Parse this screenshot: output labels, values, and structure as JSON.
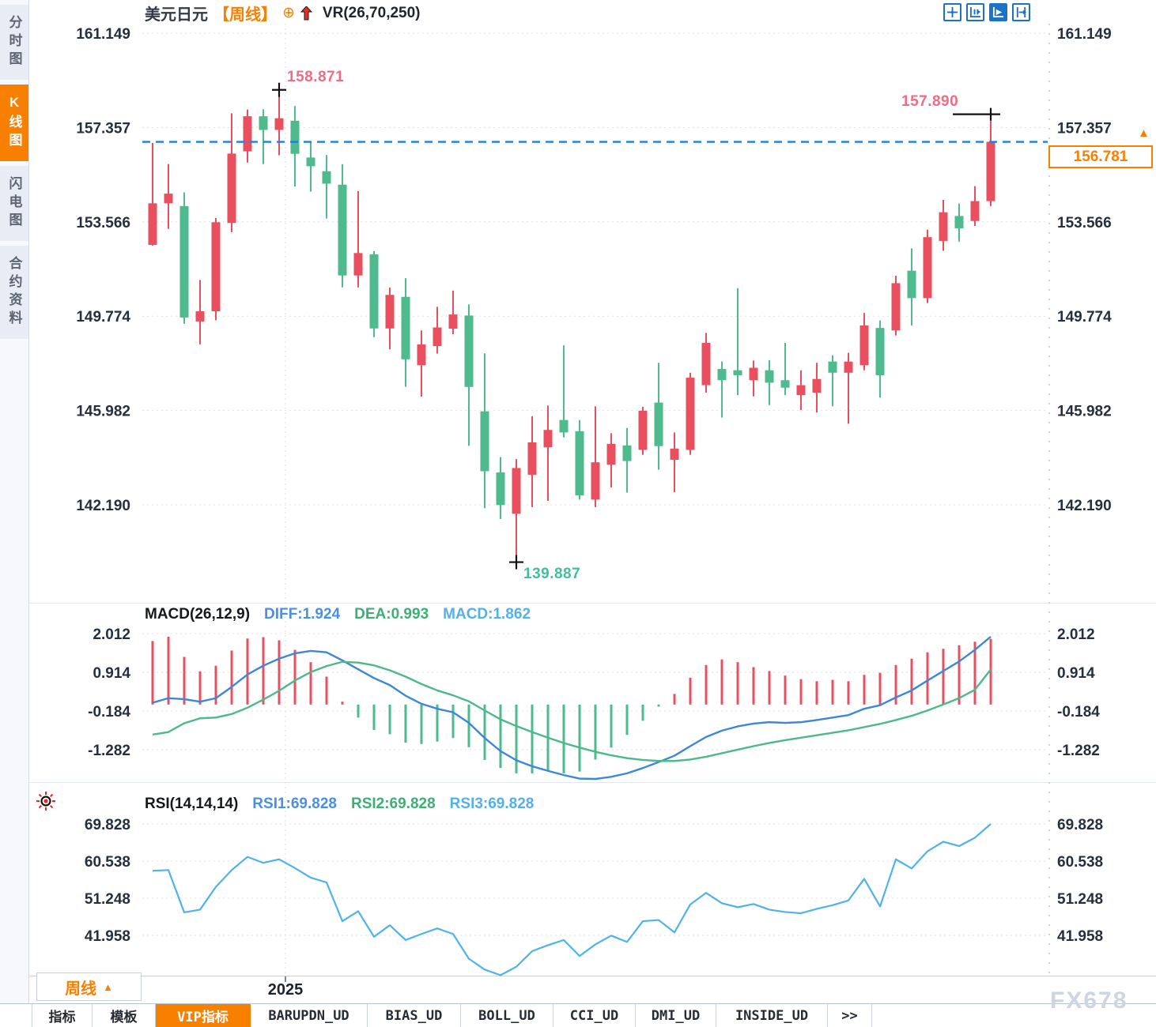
{
  "app": {
    "watermark": "FX678"
  },
  "colors": {
    "up": "#e9505f",
    "down": "#4eba8d",
    "accent": "#f88000",
    "current_price_line": "#1f7ce8",
    "annotation_high": "#ed6d85",
    "annotation_low": "#3fc0a0",
    "diff_line": "#3d87da",
    "dea_line": "#4db98a",
    "rsi_line": "#4fb3e8",
    "axis_text": "#252f3d",
    "grid": "#e2e2e2",
    "marker": "#111111"
  },
  "sidebar": {
    "items": [
      {
        "label": "分时图",
        "active": false
      },
      {
        "label": "K线图",
        "active": true
      },
      {
        "label": "闪电图",
        "active": false
      },
      {
        "label": "合约资料",
        "active": false
      }
    ]
  },
  "header": {
    "symbol": "美元日元",
    "period": "【周线】",
    "oplus": "⊕",
    "overlay_indicator": "VR(26,70,250)"
  },
  "toolbar": {
    "icons": [
      "move-crosshair-icon",
      "axis-zoom-icon",
      "auto-track-icon",
      "go-to-latest-icon"
    ]
  },
  "price_tag": {
    "value": "156.781",
    "arrow": "▲"
  },
  "period_box": {
    "label": "周线",
    "arrow": "▲"
  },
  "x_axis": {
    "year": "2025"
  },
  "bottom_tabs": [
    {
      "label": "指标",
      "active": false
    },
    {
      "label": "模板",
      "active": false
    },
    {
      "label": "VIP指标",
      "active": true
    },
    {
      "label": "BARUPDN_UD",
      "active": false
    },
    {
      "label": "BIAS_UD",
      "active": false
    },
    {
      "label": "BOLL_UD",
      "active": false
    },
    {
      "label": "CCI_UD",
      "active": false
    },
    {
      "label": "DMI_UD",
      "active": false
    },
    {
      "label": "INSIDE_UD",
      "active": false
    },
    {
      "label": ">>",
      "active": false
    }
  ],
  "chart_data": [
    {
      "type": "candlestick",
      "title": "美元日元 周线 (USD/JPY weekly)",
      "y_ticks": [
        161.149,
        157.357,
        153.566,
        149.774,
        145.982,
        142.19
      ],
      "ylim": [
        138.4,
        161.5
      ],
      "current_price": 156.781,
      "year_tick": {
        "label": "2025",
        "candle": 9.4
      },
      "annotations": [
        {
          "text": "158.871",
          "value": 158.871,
          "candle": 9,
          "kind": "swing-high"
        },
        {
          "text": "157.890",
          "value": 157.89,
          "candle": 54,
          "kind": "swing-high"
        },
        {
          "text": "139.887",
          "value": 139.887,
          "candle": 24,
          "kind": "swing-low"
        }
      ],
      "ohlc": [
        [
          152.64,
          156.74,
          152.61,
          154.31
        ],
        [
          154.31,
          155.89,
          153.28,
          154.7
        ],
        [
          154.2,
          154.75,
          149.47,
          149.72
        ],
        [
          149.56,
          151.23,
          148.64,
          149.97
        ],
        [
          149.97,
          153.72,
          149.61,
          153.55
        ],
        [
          153.52,
          157.93,
          153.15,
          156.31
        ],
        [
          156.4,
          158.08,
          155.95,
          157.81
        ],
        [
          157.81,
          158.09,
          155.89,
          157.26
        ],
        [
          157.26,
          158.871,
          156.24,
          157.73
        ],
        [
          157.63,
          158.22,
          154.98,
          156.3
        ],
        [
          156.15,
          156.75,
          154.78,
          155.8
        ],
        [
          155.6,
          156.25,
          153.7,
          155.1
        ],
        [
          155.06,
          155.88,
          150.93,
          151.41
        ],
        [
          151.41,
          154.8,
          150.93,
          152.31
        ],
        [
          152.26,
          152.39,
          148.93,
          149.28
        ],
        [
          149.28,
          150.92,
          148.44,
          150.63
        ],
        [
          150.55,
          151.3,
          146.94,
          148.04
        ],
        [
          147.8,
          149.2,
          146.54,
          148.64
        ],
        [
          148.57,
          150.15,
          148.27,
          149.32
        ],
        [
          149.27,
          150.8,
          149.05,
          149.84
        ],
        [
          149.8,
          150.25,
          144.56,
          146.93
        ],
        [
          145.95,
          148.28,
          142.05,
          143.54
        ],
        [
          143.49,
          144.11,
          141.62,
          142.18
        ],
        [
          141.83,
          144.03,
          139.887,
          143.67
        ],
        [
          143.4,
          145.75,
          142.1,
          144.7
        ],
        [
          144.5,
          146.18,
          142.35,
          145.2
        ],
        [
          145.6,
          148.6,
          144.9,
          145.1
        ],
        [
          145.15,
          145.6,
          142.4,
          142.57
        ],
        [
          142.4,
          146.15,
          142.1,
          143.9
        ],
        [
          143.8,
          145.07,
          142.89,
          144.64
        ],
        [
          144.58,
          145.28,
          142.68,
          143.95
        ],
        [
          144.4,
          146.13,
          144.2,
          145.97
        ],
        [
          146.3,
          147.9,
          143.6,
          144.55
        ],
        [
          144.0,
          145.1,
          142.7,
          144.45
        ],
        [
          144.4,
          147.5,
          144.2,
          147.3
        ],
        [
          147.0,
          149.1,
          146.7,
          148.7
        ],
        [
          147.65,
          147.95,
          145.7,
          147.2
        ],
        [
          147.6,
          150.9,
          146.6,
          147.4
        ],
        [
          147.2,
          147.99,
          146.55,
          147.7
        ],
        [
          147.6,
          148.0,
          146.2,
          147.1
        ],
        [
          147.2,
          148.7,
          146.6,
          146.9
        ],
        [
          146.6,
          147.6,
          146.0,
          147.0
        ],
        [
          146.7,
          147.9,
          145.9,
          147.25
        ],
        [
          147.95,
          148.2,
          146.15,
          147.5
        ],
        [
          147.5,
          148.3,
          145.45,
          147.95
        ],
        [
          147.8,
          149.9,
          147.6,
          149.4
        ],
        [
          149.3,
          149.6,
          146.5,
          147.4
        ],
        [
          149.2,
          151.4,
          149.0,
          151.1
        ],
        [
          151.6,
          152.5,
          149.4,
          150.5
        ],
        [
          150.5,
          153.25,
          150.3,
          152.95
        ],
        [
          152.8,
          154.45,
          152.4,
          153.95
        ],
        [
          153.8,
          154.3,
          152.77,
          153.3
        ],
        [
          153.6,
          155.0,
          153.4,
          154.4
        ],
        [
          154.4,
          157.89,
          154.2,
          156.781
        ]
      ]
    },
    {
      "type": "macd",
      "legend": {
        "title": "MACD(26,12,9)",
        "diff": "DIFF:1.924",
        "dea": "DEA:0.993",
        "macd": "MACD:1.862"
      },
      "y_ticks": [
        2.012,
        0.914,
        -0.184,
        -1.282
      ],
      "diff": [
        0.05,
        0.18,
        0.15,
        0.08,
        0.18,
        0.5,
        0.85,
        1.1,
        1.3,
        1.45,
        1.52,
        1.48,
        1.25,
        1.0,
        0.75,
        0.55,
        0.25,
        0.02,
        -0.12,
        -0.22,
        -0.52,
        -0.95,
        -1.32,
        -1.58,
        -1.75,
        -1.88,
        -2.0,
        -2.1,
        -2.12,
        -2.05,
        -1.95,
        -1.8,
        -1.63,
        -1.45,
        -1.18,
        -0.92,
        -0.74,
        -0.62,
        -0.54,
        -0.5,
        -0.52,
        -0.5,
        -0.44,
        -0.37,
        -0.3,
        -0.12,
        -0.02,
        0.2,
        0.4,
        0.68,
        0.95,
        1.22,
        1.55,
        1.924
      ],
      "dea": [
        -0.85,
        -0.78,
        -0.53,
        -0.39,
        -0.37,
        -0.27,
        -0.09,
        0.14,
        0.39,
        0.68,
        0.92,
        1.09,
        1.21,
        1.19,
        1.11,
        0.97,
        0.79,
        0.58,
        0.4,
        0.26,
        0.09,
        -0.17,
        -0.42,
        -0.61,
        -0.78,
        -0.94,
        -1.09,
        -1.22,
        -1.34,
        -1.44,
        -1.52,
        -1.57,
        -1.6,
        -1.6,
        -1.56,
        -1.48,
        -1.38,
        -1.28,
        -1.18,
        -1.09,
        -1.01,
        -0.94,
        -0.87,
        -0.8,
        -0.73,
        -0.64,
        -0.55,
        -0.44,
        -0.32,
        -0.17,
        0.0,
        0.18,
        0.42,
        0.993
      ],
      "hist": [
        1.8,
        1.92,
        1.35,
        0.94,
        1.1,
        1.53,
        1.87,
        1.91,
        1.82,
        1.55,
        1.2,
        0.79,
        0.08,
        -0.37,
        -0.72,
        -0.84,
        -1.08,
        -1.12,
        -1.05,
        -0.95,
        -1.21,
        -1.57,
        -1.8,
        -1.95,
        -1.95,
        -1.88,
        -1.95,
        -1.9,
        -1.56,
        -1.22,
        -0.86,
        -0.46,
        -0.06,
        0.3,
        0.76,
        1.12,
        1.28,
        1.2,
        1.06,
        0.95,
        0.82,
        0.72,
        0.66,
        0.7,
        0.66,
        0.84,
        0.9,
        1.12,
        1.3,
        1.48,
        1.58,
        1.68,
        1.78,
        1.862
      ]
    },
    {
      "type": "rsi",
      "legend": {
        "title": "RSI(14,14,14)",
        "rsi1": "RSI1:69.828",
        "rsi2": "RSI2:69.828",
        "rsi3": "RSI3:69.828"
      },
      "y_ticks": [
        69.828,
        60.538,
        51.248,
        41.958
      ],
      "values": [
        58.1,
        58.3,
        47.7,
        48.4,
        54.1,
        58.3,
        61.6,
        60.1,
        61.0,
        58.8,
        56.4,
        55.2,
        45.5,
        48.0,
        41.6,
        44.5,
        40.8,
        42.3,
        43.7,
        42.3,
        36.1,
        33.4,
        32.0,
        34.1,
        38.0,
        39.5,
        40.8,
        36.8,
        39.7,
        41.9,
        40.3,
        45.5,
        45.8,
        42.7,
        49.7,
        52.6,
        50.0,
        49.0,
        49.8,
        48.4,
        47.8,
        47.5,
        48.6,
        49.5,
        50.7,
        56.1,
        49.2,
        61.0,
        58.7,
        63.0,
        65.4,
        64.3,
        66.4,
        69.828
      ]
    }
  ]
}
